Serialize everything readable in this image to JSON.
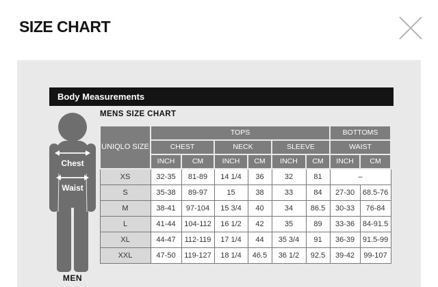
{
  "header": {
    "title": "SIZE CHART",
    "close_icon": "x-icon"
  },
  "panel": {
    "section_title": "Body Measurements",
    "chart_title": "MENS SIZE CHART",
    "figure": {
      "chest_label": "Chest",
      "waist_label": "Waist",
      "caption": "MEN",
      "arrow_icon": "double-headed-arrow-icon"
    },
    "table": {
      "size_header": "UNIQLO SIZE",
      "group_tops": "TOPS",
      "group_bottoms": "BOTTOMS",
      "measure_headers": [
        "CHEST",
        "NECK",
        "SLEEVE",
        "WAIST"
      ],
      "unit_headers": [
        "INCH",
        "CM"
      ],
      "rows": [
        {
          "size": "XS",
          "cells": [
            {
              "t": "32-35"
            },
            {
              "t": "81-89"
            },
            {
              "t": "14 1/4"
            },
            {
              "t": "36"
            },
            {
              "t": "32"
            },
            {
              "t": "81"
            },
            {
              "t": "–",
              "span": 2
            }
          ]
        },
        {
          "size": "S",
          "cells": [
            {
              "t": "35-38"
            },
            {
              "t": "89-97"
            },
            {
              "t": "15"
            },
            {
              "t": "38"
            },
            {
              "t": "33"
            },
            {
              "t": "84"
            },
            {
              "t": "27-30"
            },
            {
              "t": "68.5-76"
            }
          ]
        },
        {
          "size": "M",
          "cells": [
            {
              "t": "38-41"
            },
            {
              "t": "97-104"
            },
            {
              "t": "15 3/4"
            },
            {
              "t": "40"
            },
            {
              "t": "34"
            },
            {
              "t": "86.5"
            },
            {
              "t": "30-33"
            },
            {
              "t": "76-84"
            }
          ]
        },
        {
          "size": "L",
          "cells": [
            {
              "t": "41-44"
            },
            {
              "t": "104-112"
            },
            {
              "t": "16 1/2"
            },
            {
              "t": "42"
            },
            {
              "t": "35"
            },
            {
              "t": "89"
            },
            {
              "t": "33-36"
            },
            {
              "t": "84-91.5"
            }
          ]
        },
        {
          "size": "XL",
          "cells": [
            {
              "t": "44-47"
            },
            {
              "t": "112-119"
            },
            {
              "t": "17 1/4"
            },
            {
              "t": "44"
            },
            {
              "t": "35 3/4"
            },
            {
              "t": "91"
            },
            {
              "t": "36-39"
            },
            {
              "t": "91.5-99"
            }
          ]
        },
        {
          "size": "XXL",
          "cells": [
            {
              "t": "47-50"
            },
            {
              "t": "119-127"
            },
            {
              "t": "18 1/4"
            },
            {
              "t": "46.5"
            },
            {
              "t": "36 1/2"
            },
            {
              "t": "92.5"
            },
            {
              "t": "39-42"
            },
            {
              "t": "99-107"
            }
          ]
        }
      ]
    }
  },
  "colors": {
    "panel_bg": "#e9e9e9",
    "section_bar_bg": "#141414",
    "table_header_bg": "#7d7d7d",
    "size_column_bg": "#d8d8d8",
    "silhouette": "#6e6e6e",
    "close_icon": "#b8b8b8",
    "title_text": "#151515"
  }
}
